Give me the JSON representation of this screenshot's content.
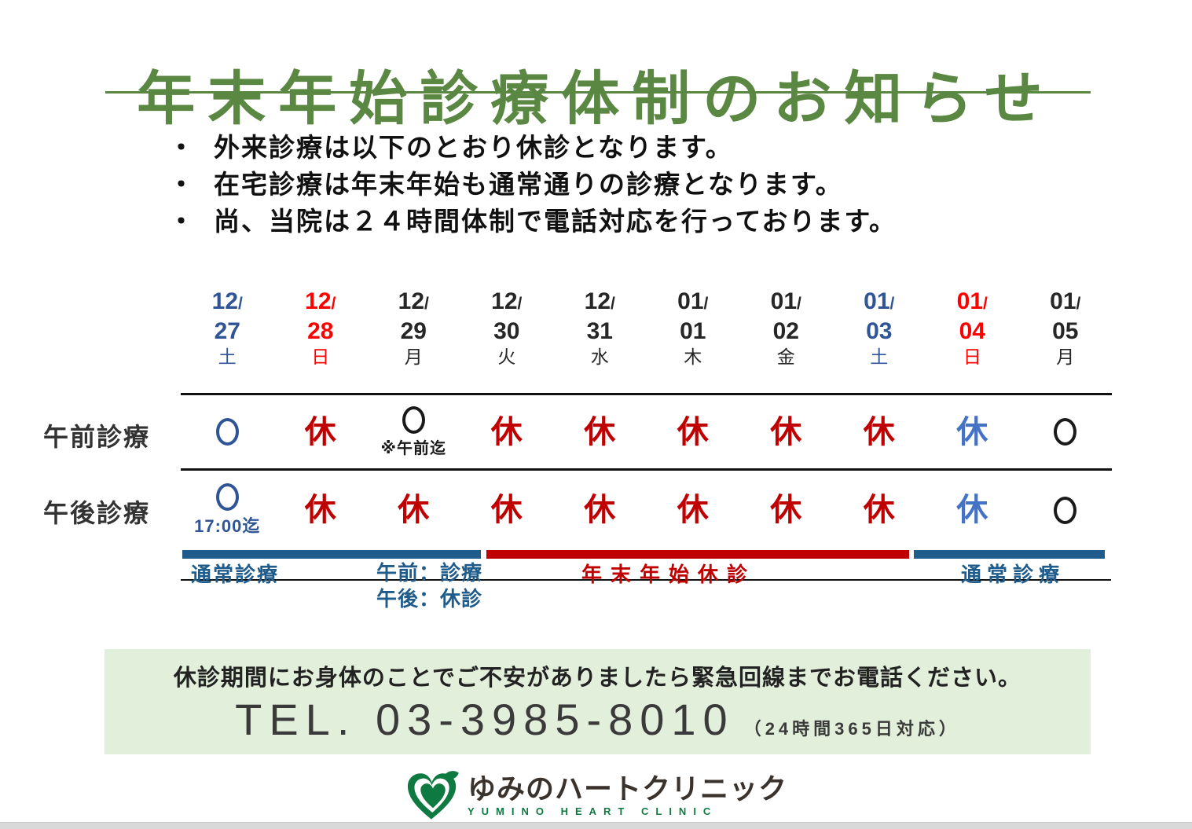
{
  "title": {
    "text": "年末年始診療体制のお知らせ",
    "color": "#5a8741"
  },
  "notes": {
    "bullet": "・",
    "items": [
      "外来診療は以下のとおり休診となります。",
      "在宅診療は年末年始も通常通りの診療となります。",
      "尚、当院は２４時間体制で電話対応を行っております。"
    ]
  },
  "schedule": {
    "row_labels": {
      "am": "午前診療",
      "pm": "午後診療"
    },
    "slash": "/",
    "columns": [
      {
        "month": "12",
        "day": "27",
        "weekday": "土",
        "date_color": "#2f5597",
        "am": {
          "type": "circle",
          "color": "#2f5597"
        },
        "pm": {
          "type": "circle",
          "color": "#2f5597",
          "caption": "17:00迄",
          "caption_color": "#2f5597",
          "caption_size": 22
        }
      },
      {
        "month": "12",
        "day": "28",
        "weekday": "日",
        "date_color": "#ff0000",
        "am": {
          "type": "text",
          "text": "休",
          "color": "#c00000"
        },
        "pm": {
          "type": "text",
          "text": "休",
          "color": "#c00000"
        }
      },
      {
        "month": "12",
        "day": "29",
        "weekday": "月",
        "date_color": "#262626",
        "am": {
          "type": "circle",
          "color": "#1a1a1a",
          "caption": "※午前迄",
          "caption_color": "#1a1a1a",
          "caption_size": 20
        },
        "pm": {
          "type": "text",
          "text": "休",
          "color": "#c00000"
        }
      },
      {
        "month": "12",
        "day": "30",
        "weekday": "火",
        "date_color": "#262626",
        "am": {
          "type": "text",
          "text": "休",
          "color": "#c00000"
        },
        "pm": {
          "type": "text",
          "text": "休",
          "color": "#c00000"
        }
      },
      {
        "month": "12",
        "day": "31",
        "weekday": "水",
        "date_color": "#262626",
        "am": {
          "type": "text",
          "text": "休",
          "color": "#c00000"
        },
        "pm": {
          "type": "text",
          "text": "休",
          "color": "#c00000"
        }
      },
      {
        "month": "01",
        "day": "01",
        "weekday": "木",
        "date_color": "#262626",
        "am": {
          "type": "text",
          "text": "休",
          "color": "#c00000"
        },
        "pm": {
          "type": "text",
          "text": "休",
          "color": "#c00000"
        }
      },
      {
        "month": "01",
        "day": "02",
        "weekday": "金",
        "date_color": "#262626",
        "am": {
          "type": "text",
          "text": "休",
          "color": "#c00000"
        },
        "pm": {
          "type": "text",
          "text": "休",
          "color": "#c00000"
        }
      },
      {
        "month": "01",
        "day": "03",
        "weekday": "土",
        "date_color": "#2f5597",
        "am": {
          "type": "text",
          "text": "休",
          "color": "#c00000"
        },
        "pm": {
          "type": "text",
          "text": "休",
          "color": "#c00000"
        }
      },
      {
        "month": "01",
        "day": "04",
        "weekday": "日",
        "date_color": "#ff0000",
        "am": {
          "type": "text",
          "text": "休",
          "color": "#4472c4"
        },
        "pm": {
          "type": "text",
          "text": "休",
          "color": "#4472c4"
        }
      },
      {
        "month": "01",
        "day": "05",
        "weekday": "月",
        "date_color": "#262626",
        "am": {
          "type": "circle",
          "color": "#1a1a1a"
        },
        "pm": {
          "type": "circle",
          "color": "#1a1a1a"
        }
      }
    ]
  },
  "periods": {
    "normal_left": {
      "label": "通常診療",
      "bar_color": "#1f5c8b"
    },
    "dec29_am": "午前：診療",
    "dec29_pm": "午後：休診",
    "holiday": {
      "label": "年末年始休診",
      "bar_color": "#c00000"
    },
    "normal_right": {
      "label": "通常診療",
      "bar_color": "#1f5c8b"
    }
  },
  "contact": {
    "bg": "#e2efda",
    "message": "休診期間にお身体のことでご不安がありましたら緊急回線までお電話ください。",
    "tel": "TEL. 03-3985-8010",
    "tel_note": "（24時間365日対応）"
  },
  "footer": {
    "clinic_name": "ゆみのハートクリニック",
    "clinic_name_en": "YUMINO HEART CLINIC",
    "logo_green": "#0e7a41"
  }
}
